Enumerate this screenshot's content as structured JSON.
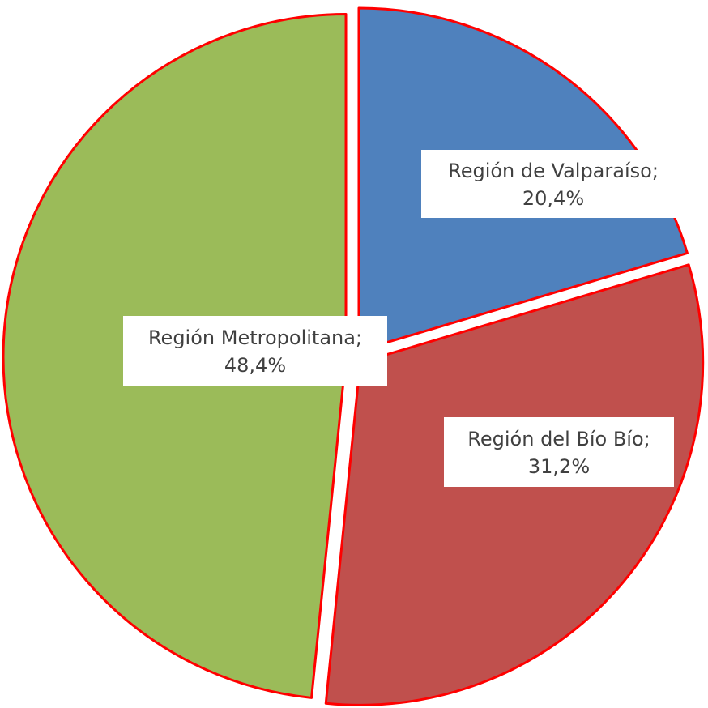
{
  "chart_data": {
    "type": "pie",
    "categories": [
      "Región de Valparaíso;",
      "Región del Bío Bío;",
      "Región Metropolitana;"
    ],
    "values": [
      20.4,
      31.2,
      48.4
    ],
    "value_labels": [
      "20,4%",
      "31,2%",
      "48,4%"
    ],
    "colors": [
      "#4f81bd",
      "#c0504d",
      "#9bbb59"
    ],
    "edge_color": "#ff0000"
  }
}
